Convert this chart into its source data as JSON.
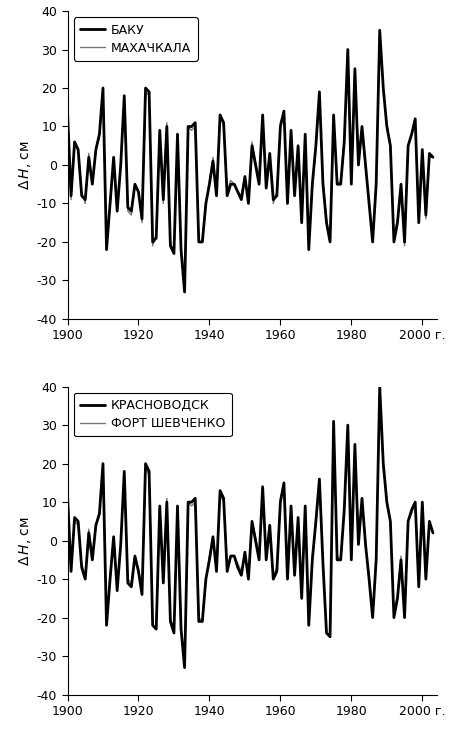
{
  "years": [
    1900,
    1901,
    1902,
    1903,
    1904,
    1905,
    1906,
    1907,
    1908,
    1909,
    1910,
    1911,
    1912,
    1913,
    1914,
    1915,
    1916,
    1917,
    1918,
    1919,
    1920,
    1921,
    1922,
    1923,
    1924,
    1925,
    1926,
    1927,
    1928,
    1929,
    1930,
    1931,
    1932,
    1933,
    1934,
    1935,
    1936,
    1937,
    1938,
    1939,
    1940,
    1941,
    1942,
    1943,
    1944,
    1945,
    1946,
    1947,
    1948,
    1949,
    1950,
    1951,
    1952,
    1953,
    1954,
    1955,
    1956,
    1957,
    1958,
    1959,
    1960,
    1961,
    1962,
    1963,
    1964,
    1965,
    1966,
    1967,
    1968,
    1969,
    1970,
    1971,
    1972,
    1973,
    1974,
    1975,
    1976,
    1977,
    1978,
    1979,
    1980,
    1981,
    1982,
    1983,
    1984,
    1985,
    1986,
    1987,
    1988,
    1989,
    1990,
    1991,
    1992,
    1993,
    1994,
    1995,
    1996,
    1997,
    1998,
    1999,
    2000,
    2001,
    2002,
    2003
  ],
  "baku": [
    14,
    -8,
    6,
    4,
    -8,
    -9,
    2,
    -5,
    4,
    8,
    20,
    -22,
    -10,
    2,
    -12,
    0,
    18,
    -11,
    -12,
    -5,
    -7,
    -14,
    20,
    19,
    -20,
    -19,
    9,
    -9,
    10,
    -21,
    -23,
    8,
    -22,
    -33,
    10,
    10,
    11,
    -20,
    -20,
    -10,
    -5,
    1,
    -8,
    13,
    11,
    -8,
    -5,
    -5,
    -7,
    -9,
    -3,
    -10,
    5,
    0,
    -5,
    13,
    -6,
    3,
    -9,
    -8,
    10,
    14,
    -10,
    9,
    -8,
    5,
    -15,
    8,
    -22,
    -5,
    5,
    19,
    -5,
    -15,
    -20,
    13,
    -5,
    -5,
    6,
    30,
    -5,
    25,
    0,
    10,
    0,
    -10,
    -20,
    -5,
    35,
    20,
    10,
    5,
    -20,
    -15,
    -5,
    -20,
    5,
    8,
    12,
    -15,
    4,
    -13,
    3,
    2
  ],
  "makhachkala": [
    13,
    -9,
    5,
    4,
    -7,
    -10,
    3,
    -5,
    4,
    7,
    19,
    -21,
    -11,
    1,
    -12,
    0,
    18,
    -12,
    -13,
    -5,
    -7,
    -15,
    18,
    19,
    -21,
    -18,
    8,
    -10,
    11,
    -20,
    -23,
    8,
    -22,
    -33,
    10,
    9,
    10,
    -20,
    -20,
    -10,
    -4,
    2,
    -7,
    13,
    10,
    -7,
    -4,
    -5,
    -7,
    -8,
    -3,
    -9,
    6,
    1,
    -4,
    12,
    -5,
    2,
    -10,
    -7,
    11,
    14,
    -10,
    8,
    -7,
    4,
    -14,
    7,
    -22,
    -6,
    4,
    18,
    -4,
    -14,
    -20,
    12,
    -5,
    -4,
    7,
    29,
    -4,
    24,
    3,
    9,
    -1,
    -9,
    -19,
    -4,
    35,
    19,
    11,
    5,
    -19,
    -14,
    -5,
    -21,
    5,
    8,
    11,
    -15,
    3,
    -14,
    2,
    2
  ],
  "krasnovodsk": [
    12,
    -8,
    6,
    5,
    -7,
    -10,
    2,
    -5,
    4,
    7,
    20,
    -22,
    -10,
    1,
    -13,
    -1,
    18,
    -11,
    -12,
    -4,
    -8,
    -14,
    20,
    18,
    -22,
    -23,
    9,
    -11,
    10,
    -21,
    -24,
    9,
    -23,
    -33,
    10,
    10,
    11,
    -21,
    -21,
    -10,
    -5,
    1,
    -8,
    13,
    11,
    -8,
    -4,
    -4,
    -7,
    -9,
    -3,
    -10,
    5,
    0,
    -5,
    14,
    -5,
    4,
    -10,
    -8,
    10,
    15,
    -10,
    9,
    -9,
    6,
    -15,
    9,
    -22,
    -5,
    5,
    16,
    -6,
    -24,
    -25,
    31,
    -5,
    -5,
    8,
    30,
    -5,
    25,
    -1,
    11,
    -1,
    -10,
    -20,
    -5,
    40,
    20,
    10,
    5,
    -20,
    -15,
    -5,
    -20,
    5,
    8,
    10,
    -12,
    10,
    -10,
    5,
    2
  ],
  "fortshevchenko": [
    11,
    -7,
    5,
    4,
    -6,
    -9,
    3,
    -4,
    4,
    7,
    19,
    -21,
    -9,
    1,
    -12,
    -1,
    17,
    -10,
    -11,
    -4,
    -7,
    -13,
    19,
    17,
    -22,
    -23,
    8,
    -10,
    11,
    -20,
    -23,
    8,
    -22,
    -33,
    10,
    9,
    10,
    -20,
    -21,
    -10,
    -4,
    1,
    -7,
    12,
    10,
    -7,
    -4,
    -4,
    -6,
    -8,
    -3,
    -9,
    5,
    1,
    -4,
    13,
    -4,
    3,
    -9,
    -7,
    11,
    15,
    -10,
    8,
    -8,
    5,
    -14,
    8,
    -22,
    -4,
    4,
    15,
    -5,
    -24,
    -25,
    30,
    -4,
    -5,
    8,
    29,
    -4,
    24,
    1,
    10,
    -1,
    -9,
    -19,
    -4,
    39,
    19,
    11,
    5,
    -19,
    -14,
    -4,
    -20,
    5,
    7,
    10,
    -12,
    10,
    -10,
    5,
    2
  ],
  "ylim": [
    -40,
    40
  ],
  "yticks": [
    -40,
    -30,
    -20,
    -10,
    0,
    10,
    20,
    30,
    40
  ],
  "xlim": [
    1900,
    2004
  ],
  "xticks": [
    1900,
    1920,
    1940,
    1960,
    1980,
    2000
  ],
  "xlabel_suffix": "г.",
  "legend1": [
    "БАКУ",
    "МАХАЧКАЛА"
  ],
  "legend2": [
    "КРАСНОВОДСК",
    "ФОРТ ШЕВЧЕНКО"
  ],
  "lw_thick": 2.0,
  "lw_thin": 1.0,
  "bg_color": "#ffffff",
  "tick_fontsize": 9,
  "legend_fontsize": 9
}
